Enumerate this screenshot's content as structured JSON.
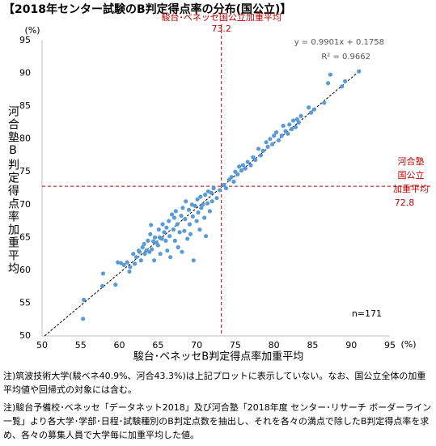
{
  "chart_data": {
    "type": "scatter",
    "title": "【2018年センター試験のB判定得点率の分布(国公立)】",
    "x_label": "駿台･ベネッセB判定得点率加重平均",
    "y_label": "河合塾B判定得点率加重平均",
    "x_unit": "(%)",
    "y_unit": "(%)",
    "xlim": [
      50,
      95
    ],
    "xticks": [
      50,
      55,
      60,
      65,
      70,
      75,
      80,
      85,
      90,
      95
    ],
    "ylim": [
      50,
      95
    ],
    "yticks": [
      50,
      55,
      60,
      65,
      70,
      75,
      80,
      85,
      90,
      95
    ],
    "series": [
      {
        "color": "#5b9bd5",
        "x": [
          55.3,
          55.4,
          57.8,
          57.9,
          59.5,
          59.8,
          60.2,
          60.6,
          61.0,
          61.3,
          61.4,
          61.8,
          62.0,
          62.2,
          62.5,
          62.6,
          62.8,
          63.0,
          63.2,
          63.3,
          63.5,
          63.7,
          63.9,
          64.0,
          64.1,
          64.2,
          64.4,
          64.5,
          64.6,
          64.8,
          65.0,
          65.1,
          65.2,
          65.3,
          65.5,
          65.6,
          65.8,
          66.0,
          66.1,
          66.2,
          66.4,
          66.5,
          66.6,
          66.8,
          67.0,
          67.1,
          67.2,
          67.3,
          67.5,
          67.6,
          67.8,
          68.0,
          68.1,
          68.2,
          68.4,
          68.5,
          68.6,
          68.8,
          69.0,
          69.1,
          69.2,
          69.4,
          69.5,
          69.6,
          69.8,
          70.0,
          70.1,
          70.2,
          70.4,
          70.5,
          70.6,
          70.8,
          71.0,
          71.1,
          71.2,
          71.4,
          71.5,
          71.7,
          71.9,
          72.0,
          72.2,
          72.6,
          73.0,
          73.5,
          73.8,
          74.2,
          74.5,
          74.8,
          75.0,
          75.3,
          75.5,
          75.8,
          76.0,
          76.3,
          76.6,
          77.0,
          77.3,
          77.6,
          78.0,
          78.3,
          78.6,
          79.0,
          79.2,
          79.5,
          79.8,
          80.0,
          80.3,
          80.6,
          81.0,
          81.2,
          81.5,
          81.8,
          82.0,
          82.3,
          82.5,
          82.8,
          83.0,
          83.2,
          83.5,
          84.5,
          84.8,
          85.2,
          86.5,
          87.0,
          87.3,
          88.8,
          89.2,
          91.0
        ],
        "y": [
          52.6,
          55.5,
          57.6,
          59.5,
          57.8,
          61.2,
          61.1,
          60.8,
          61.2,
          59.8,
          60.5,
          62.5,
          61.0,
          62.0,
          63.0,
          62.8,
          61.5,
          63.5,
          64.0,
          62.5,
          63.0,
          64.5,
          62.8,
          65.5,
          66.9,
          63.2,
          64.4,
          61.5,
          65.0,
          64.2,
          63.8,
          66.2,
          65.0,
          62.5,
          64.8,
          67.0,
          65.8,
          64.5,
          66.5,
          63.0,
          67.5,
          65.2,
          62.0,
          68.5,
          66.2,
          68.0,
          64.5,
          69.0,
          67.0,
          63.5,
          65.8,
          68.3,
          62.8,
          69.5,
          66.0,
          67.8,
          70.5,
          64.8,
          69.2,
          67.0,
          65.5,
          70.0,
          68.2,
          61.5,
          69.8,
          67.5,
          70.8,
          68.8,
          66.2,
          71.2,
          69.5,
          70.0,
          68.0,
          71.5,
          65.2,
          70.2,
          72.0,
          69.0,
          71.8,
          70.5,
          72.5,
          71.0,
          72.2,
          73.0,
          72.5,
          73.8,
          74.2,
          73.5,
          75.0,
          74.6,
          75.8,
          75.2,
          76.0,
          75.5,
          76.5,
          76.0,
          77.2,
          76.8,
          78.5,
          77.5,
          78.2,
          79.5,
          78.8,
          80.0,
          79.2,
          80.5,
          81.0,
          79.8,
          80.5,
          82.0,
          81.2,
          80.8,
          82.2,
          81.5,
          82.8,
          81.8,
          83.0,
          82.5,
          83.5,
          84.8,
          84.0,
          84.5,
          85.5,
          88.5,
          89.8,
          88.0,
          88.8,
          90.3
        ]
      }
    ],
    "trendline": {
      "slope": 0.9901,
      "intercept": 0.1758,
      "equation": "y = 0.9901x + 0.1758",
      "r2": "R² = 0.9662"
    },
    "count_label": "n=171",
    "reference_lines": [
      {
        "axis": "x",
        "value": 73.2,
        "label": [
          "駿台･ベネッセ国公立加重平均"
        ],
        "color": "#c00000"
      },
      {
        "axis": "y",
        "value": 72.8,
        "label": [
          "河合塾",
          "国公立",
          "加重平均"
        ],
        "color": "#c00000"
      }
    ]
  },
  "notes": [
    "注)筑波技術大学(駿ベネ40.9%、河合43.3%)は上記プロットに表示していない。なお、国公立全体の加重平均値や回帰式の対象には含む。",
    "注)駿台予備校･ベネッセ「データネット2018」及び河合塾「2018年度 センター･リサーチ ボーダーライン一覧」より各大学･学部･日程･試験種別のB判定点数を抽出し、それを各々の満点で除したB判定得点率を求め、各々の募集人員で大学毎に加重平均した値。"
  ]
}
